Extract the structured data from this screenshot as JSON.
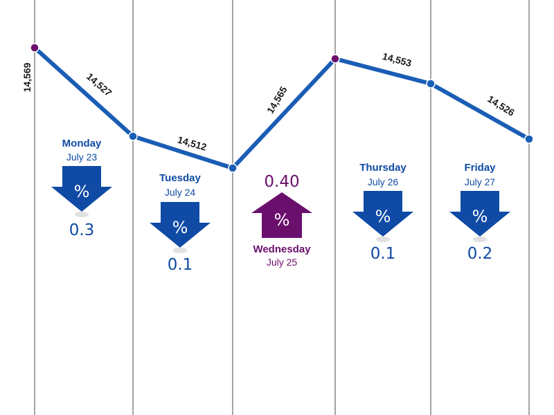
{
  "colors": {
    "line": "#1a5db5",
    "down": "#0f4aa5",
    "up": "#6b0f6d",
    "text_down": "#0f4aa5",
    "text_up": "#6b0f6d"
  },
  "chart_data": {
    "type": "line",
    "points": [
      {
        "value": 14569,
        "label": "14,569",
        "marker": "peak"
      },
      {
        "value": 14527,
        "label": "14,527"
      },
      {
        "value": 14512,
        "label": "14,512"
      },
      {
        "value": 14565,
        "label": "14,565"
      },
      {
        "value": 14569,
        "marker": "peak"
      },
      {
        "value": 14553,
        "label": "14,553"
      },
      {
        "value": 14526,
        "label": "14,526"
      }
    ],
    "days": [
      {
        "day": "Monday",
        "date": "July 23",
        "change": "0.3",
        "direction": "down",
        "icon": "percent-down-arrow"
      },
      {
        "day": "Tuesday",
        "date": "July 24",
        "change": "0.1",
        "direction": "down",
        "icon": "percent-down-arrow"
      },
      {
        "day": "Wednesday",
        "date": "July 25",
        "change": "0.40",
        "direction": "up",
        "icon": "percent-up-arrow"
      },
      {
        "day": "Thursday",
        "date": "July 26",
        "change": "0.1",
        "direction": "down",
        "icon": "percent-down-arrow"
      },
      {
        "day": "Friday",
        "date": "July 27",
        "change": "0.2",
        "direction": "down",
        "icon": "percent-down-arrow"
      }
    ]
  }
}
